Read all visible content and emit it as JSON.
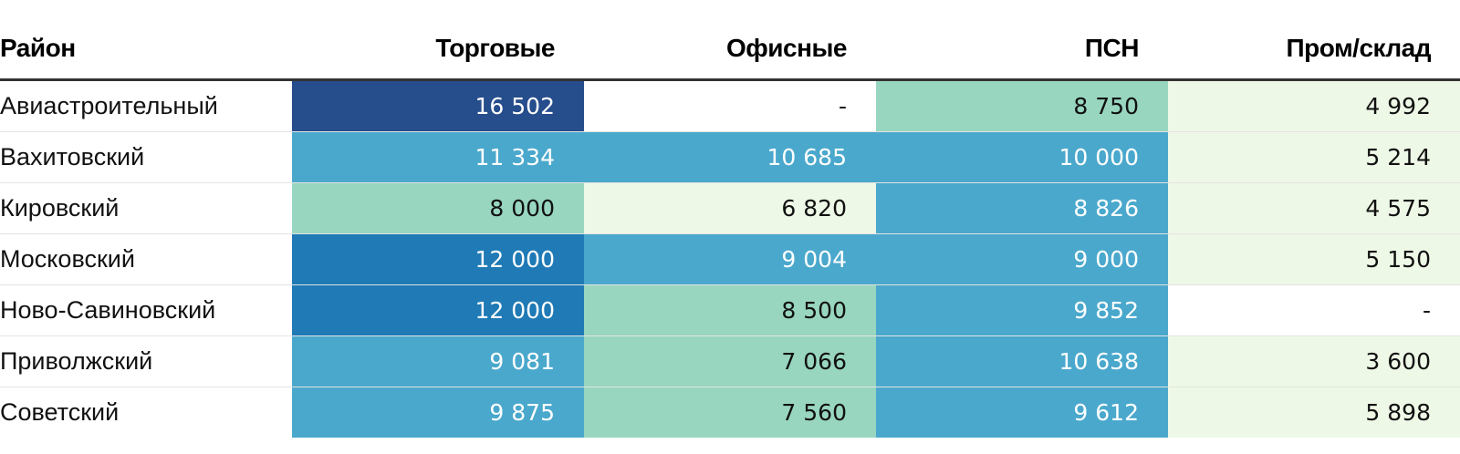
{
  "chart_data": {
    "type": "table",
    "columns": [
      "Район",
      "Торговые",
      "Офисные",
      "ПСН",
      "Пром/склад"
    ],
    "rows": [
      {
        "name": "Авиастроительный",
        "values": [
          "16 502",
          "-",
          "8 750",
          "4 992"
        ]
      },
      {
        "name": "Вахитовский",
        "values": [
          "11 334",
          "10 685",
          "10 000",
          "5 214"
        ]
      },
      {
        "name": "Кировский",
        "values": [
          "8 000",
          "6 820",
          "8 826",
          "4 575"
        ]
      },
      {
        "name": "Московский",
        "values": [
          "12 000",
          "9 004",
          "9 000",
          "5 150"
        ]
      },
      {
        "name": "Ново-Савиновский",
        "values": [
          "12 000",
          "8 500",
          "9 852",
          "-"
        ]
      },
      {
        "name": "Приволжский",
        "values": [
          "9 081",
          "7 066",
          "10 638",
          "3 600"
        ]
      },
      {
        "name": "Советский",
        "values": [
          "9 875",
          "7 560",
          "9 612",
          "5 898"
        ]
      }
    ],
    "color_scale": [
      {
        "max": 0,
        "bg": "#ffffff",
        "fg": "#111111"
      },
      {
        "max": 7000,
        "bg": "#eef8e6",
        "fg": "#111111"
      },
      {
        "max": 8800,
        "bg": "#98d6c0",
        "fg": "#111111"
      },
      {
        "max": 11500,
        "bg": "#4aa8cc",
        "fg": "#ffffff"
      },
      {
        "max": 14000,
        "bg": "#1f7ab6",
        "fg": "#ffffff"
      },
      {
        "max": 999999,
        "bg": "#264d8c",
        "fg": "#ffffff"
      }
    ]
  }
}
